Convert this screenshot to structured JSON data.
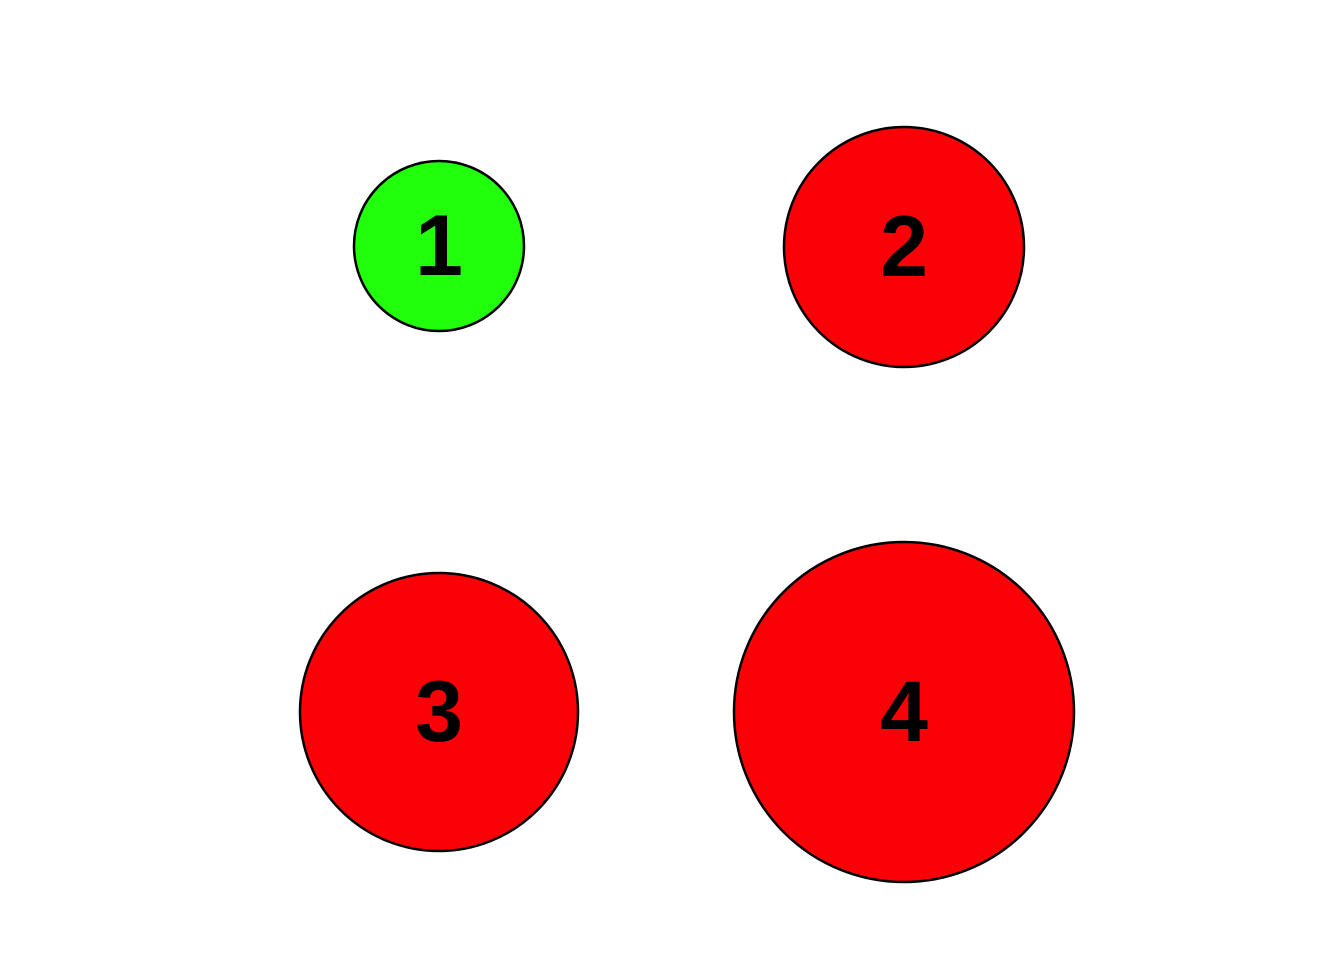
{
  "circles": [
    {
      "label": "1",
      "color": "#22ff0d",
      "size": "small"
    },
    {
      "label": "2",
      "color": "#fc0007",
      "size": "medium"
    },
    {
      "label": "3",
      "color": "#fc0007",
      "size": "medium"
    },
    {
      "label": "4",
      "color": "#fc0007",
      "size": "large"
    }
  ],
  "stroke_color": "#000000"
}
